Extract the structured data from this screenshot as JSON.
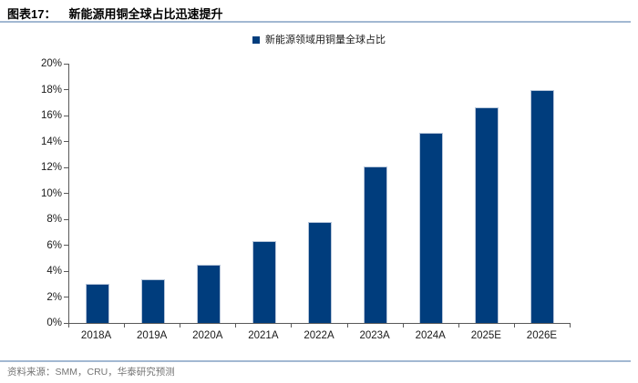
{
  "header": {
    "figure_label": "图表17：",
    "figure_title": "新能源用铜全球占比迅速提升"
  },
  "legend": {
    "label": "新能源领域用铜量全球占比"
  },
  "chart_data": {
    "type": "bar",
    "title": "新能源用铜全球占比迅速提升",
    "categories": [
      "2018A",
      "2019A",
      "2020A",
      "2021A",
      "2022A",
      "2023A",
      "2024A",
      "2025E",
      "2026E"
    ],
    "values": [
      3.0,
      3.4,
      4.5,
      6.3,
      7.8,
      12.1,
      14.7,
      16.6,
      18.0
    ],
    "xlabel": "",
    "ylabel": "",
    "ylim": [
      0,
      20
    ],
    "ytick_step": 2,
    "ytick_labels": [
      "0%",
      "2%",
      "4%",
      "6%",
      "8%",
      "10%",
      "12%",
      "14%",
      "16%",
      "18%",
      "20%"
    ],
    "legend": [
      "新能源领域用铜量全球占比"
    ],
    "legend_position": "top-center",
    "grid": false,
    "bar_color": "#003d7d"
  },
  "footer": {
    "source": "资料来源：SMM，CRU，华泰研究预测"
  },
  "colors": {
    "bar": "#003d7d",
    "axis": "#595959",
    "divider": "#a2b8d2",
    "text": "#1a1a1a",
    "source_text": "#757575"
  }
}
